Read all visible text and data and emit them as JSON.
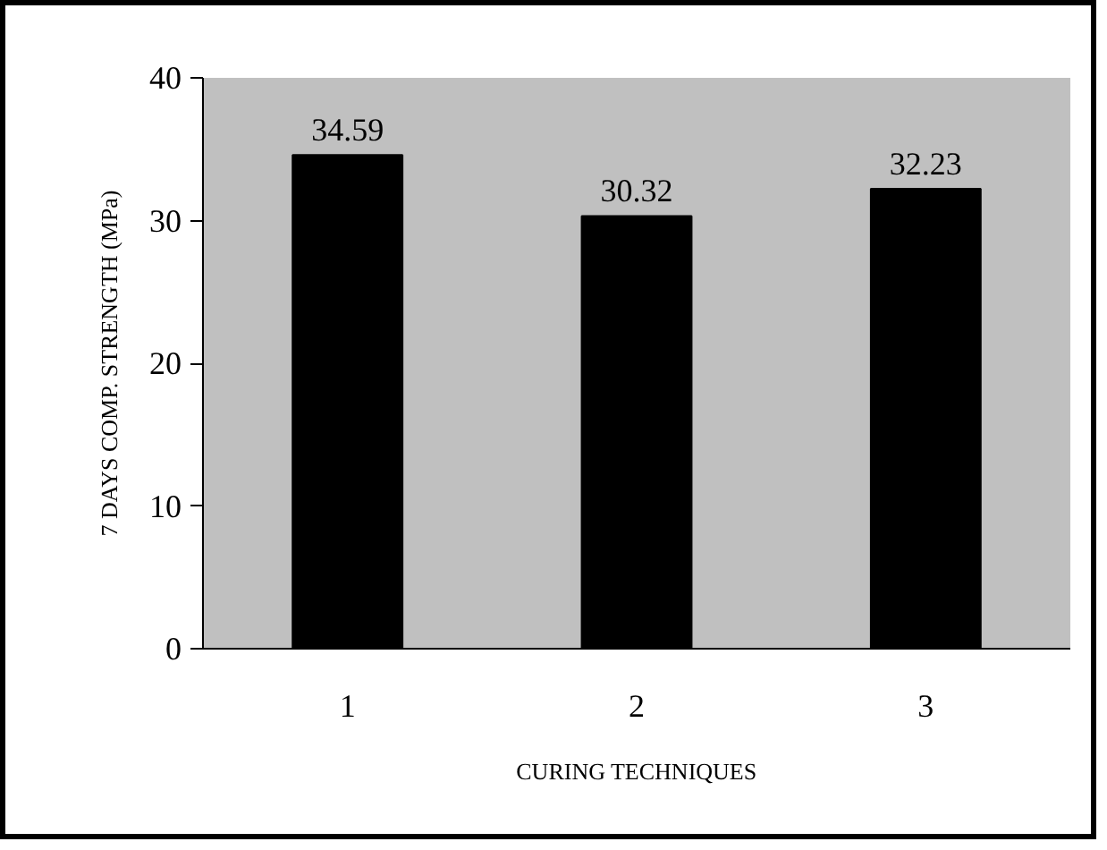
{
  "chart_data": {
    "type": "bar",
    "xlabel": "CURING TECHNIQUES",
    "ylabel": "7 DAYS COMP. STRENGTH (MPa)",
    "categories": [
      "1",
      "2",
      "3"
    ],
    "values": [
      34.59,
      30.32,
      32.23
    ],
    "color": "#000000",
    "ylim": [
      0,
      40
    ],
    "yticks": [
      0,
      10,
      20,
      30,
      40
    ],
    "data_labels": true,
    "grid": false
  }
}
